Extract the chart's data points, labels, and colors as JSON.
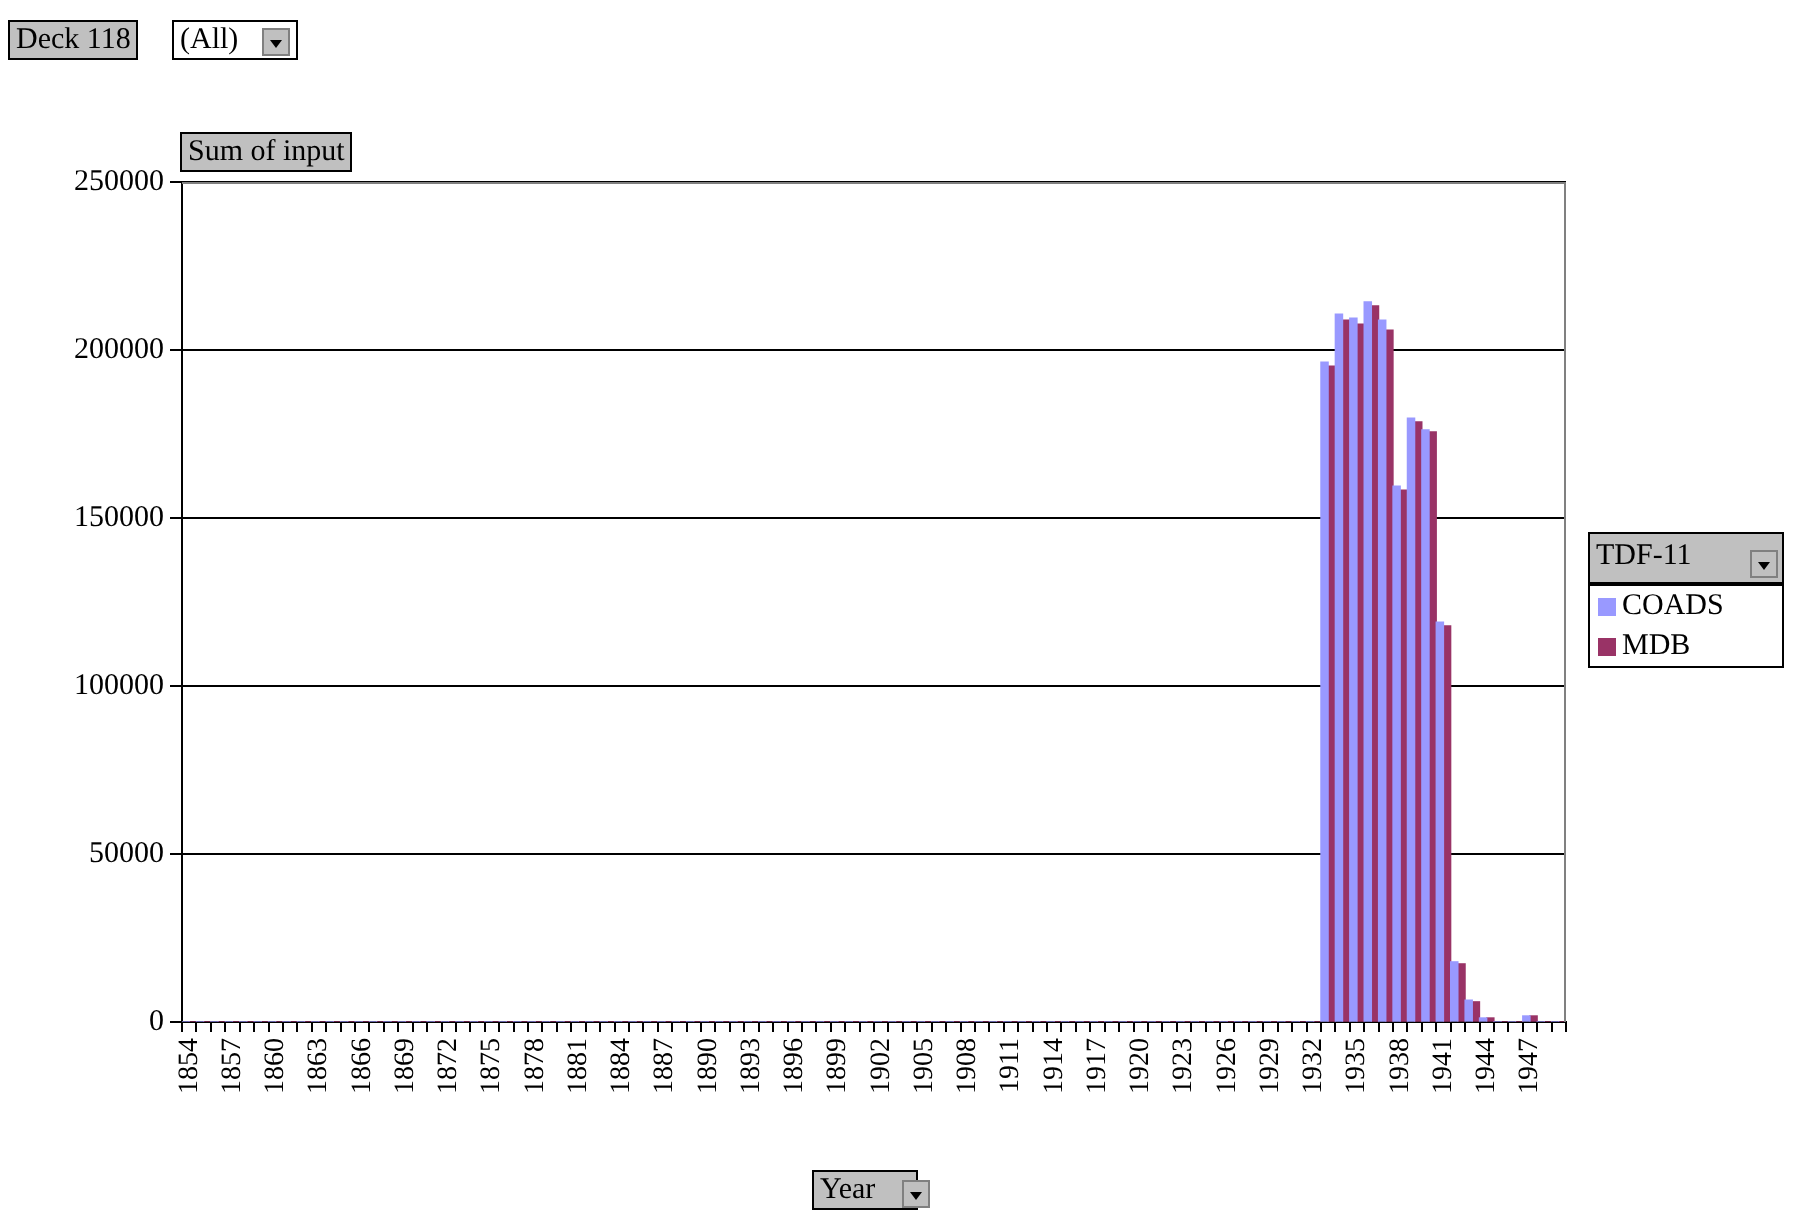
{
  "chart_data": {
    "type": "bar",
    "annotations": [
      "Deck 118",
      "(All)"
    ],
    "ylabel": "Sum of input",
    "xlabel": "Year",
    "legend_title": "TDF-11",
    "categories": [
      "1854",
      null,
      null,
      "1857",
      null,
      null,
      "1860",
      null,
      null,
      "1863",
      null,
      null,
      "1866",
      null,
      null,
      "1869",
      null,
      null,
      "1872",
      null,
      null,
      "1875",
      null,
      null,
      "1878",
      null,
      null,
      "1881",
      null,
      null,
      "1884",
      null,
      null,
      "1887",
      null,
      null,
      "1890",
      null,
      null,
      "1893",
      null,
      null,
      "1896",
      null,
      null,
      "1899",
      null,
      null,
      "1902",
      null,
      null,
      "1905",
      null,
      null,
      "1908",
      null,
      null,
      "1911",
      null,
      null,
      "1914",
      null,
      null,
      "1917",
      null,
      null,
      "1920",
      null,
      null,
      "1923",
      null,
      null,
      "1926",
      null,
      null,
      "1929",
      null,
      null,
      "1932",
      null,
      null,
      "1935",
      null,
      null,
      "1938",
      null,
      null,
      "1941",
      null,
      null,
      "1944",
      null,
      null,
      "1947",
      null,
      null
    ],
    "series": [
      {
        "name": "COADS",
        "color": "#9999ff",
        "values": [
          0,
          0,
          0,
          0,
          0,
          0,
          0,
          0,
          0,
          0,
          0,
          0,
          0,
          0,
          0,
          0,
          0,
          0,
          0,
          0,
          0,
          0,
          0,
          0,
          0,
          0,
          0,
          0,
          0,
          0,
          0,
          0,
          0,
          0,
          0,
          0,
          0,
          0,
          0,
          0,
          0,
          0,
          0,
          0,
          0,
          0,
          0,
          0,
          0,
          0,
          0,
          0,
          0,
          0,
          0,
          0,
          0,
          0,
          0,
          0,
          0,
          0,
          0,
          0,
          0,
          0,
          0,
          0,
          0,
          0,
          0,
          0,
          0,
          0,
          0,
          0,
          0,
          0,
          0,
          196400,
          210700,
          209500,
          214300,
          208900,
          159500,
          179700,
          176200,
          119000,
          17900,
          6500,
          1200,
          0,
          0,
          1800,
          0,
          0
        ]
      },
      {
        "name": "MDB",
        "color": "#993366",
        "values": [
          0,
          0,
          0,
          0,
          0,
          0,
          0,
          0,
          0,
          0,
          0,
          0,
          0,
          0,
          0,
          0,
          0,
          0,
          0,
          0,
          0,
          0,
          0,
          0,
          0,
          0,
          0,
          0,
          0,
          0,
          0,
          0,
          0,
          0,
          0,
          0,
          0,
          0,
          0,
          0,
          0,
          0,
          0,
          0,
          0,
          0,
          0,
          0,
          0,
          0,
          0,
          0,
          0,
          0,
          0,
          0,
          0,
          0,
          0,
          0,
          0,
          0,
          0,
          0,
          0,
          0,
          0,
          0,
          0,
          0,
          0,
          0,
          0,
          0,
          0,
          0,
          0,
          0,
          0,
          195200,
          208900,
          207700,
          213100,
          205900,
          158300,
          178600,
          175600,
          117900,
          17300,
          6000,
          1200,
          0,
          0,
          1800,
          0,
          0
        ]
      }
    ],
    "ylim": [
      0,
      250000
    ],
    "yticks": [
      0,
      50000,
      100000,
      150000,
      200000,
      250000
    ],
    "grid": "y",
    "legend": "right"
  }
}
